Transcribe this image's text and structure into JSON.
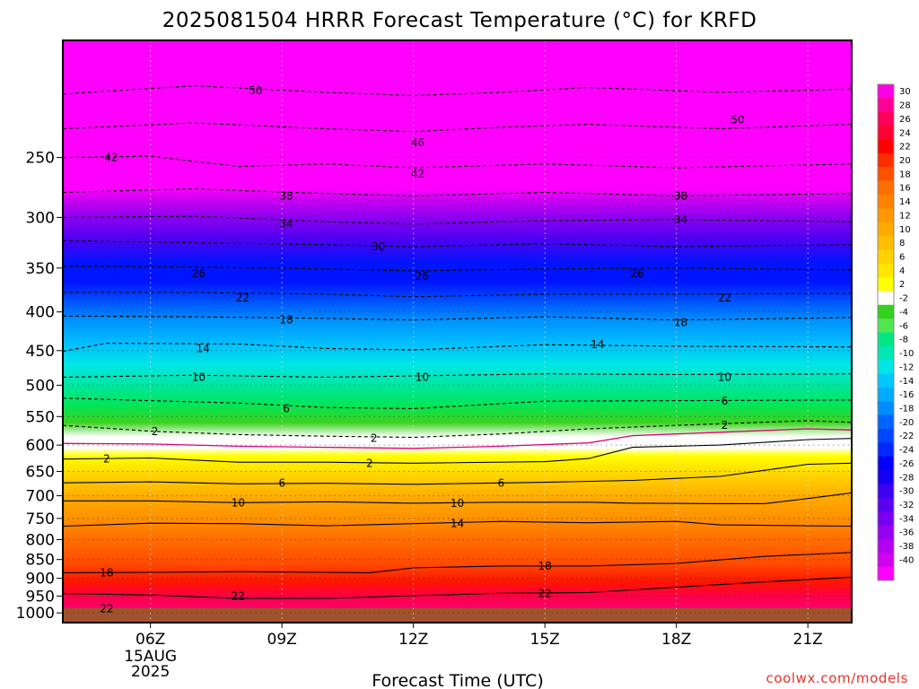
{
  "chart_data": {
    "type": "heatmap",
    "subtype": "filled-contour time-height cross section",
    "title": "2025081504 HRRR Forecast Temperature (°C) for KRFD",
    "xlabel": "Forecast Time (UTC)",
    "ylabel": "",
    "x_ticks": [
      {
        "label": "06Z",
        "sub": [
          "15AUG",
          "2025"
        ]
      },
      {
        "label": "09Z"
      },
      {
        "label": "12Z"
      },
      {
        "label": "15Z"
      },
      {
        "label": "18Z"
      },
      {
        "label": "21Z"
      }
    ],
    "y_axis": {
      "quantity": "pressure (hPa)",
      "scale": "log",
      "reversed": true,
      "range": [
        1030,
        175
      ],
      "ticks": [
        250,
        300,
        350,
        400,
        450,
        500,
        550,
        600,
        650,
        700,
        750,
        800,
        850,
        900,
        950,
        1000
      ]
    },
    "x_range_hours": [
      4,
      22
    ],
    "grid": "dotted",
    "ground_below_hPa": 985,
    "ground_color": "#a0522d",
    "colorbar": {
      "label_values": [
        30,
        28,
        26,
        24,
        22,
        20,
        18,
        16,
        14,
        12,
        10,
        8,
        6,
        4,
        2,
        -2,
        -4,
        -6,
        -8,
        -10,
        -12,
        -14,
        -16,
        -18,
        -20,
        -22,
        -24,
        -26,
        -28,
        -30,
        -32,
        -34,
        -36,
        -38,
        -40
      ],
      "colors": [
        "#ff00e6",
        "#ff0096",
        "#ff005a",
        "#ff0032",
        "#ff0000",
        "#ff2d00",
        "#ff5000",
        "#ff6e00",
        "#ff8200",
        "#ff9600",
        "#ffaa00",
        "#ffbe00",
        "#ffd200",
        "#ffe600",
        "#ffff00",
        "#ffffff",
        "#32d21e",
        "#50e650",
        "#00e682",
        "#00e6b4",
        "#00e6e6",
        "#00c8ff",
        "#00aaff",
        "#008cff",
        "#0064ff",
        "#0046ff",
        "#0028ff",
        "#0000ff",
        "#1400f0",
        "#3c00f0",
        "#5a00f0",
        "#7800f0",
        "#9600f0",
        "#b400f0",
        "#d200f0",
        "#ff00ff"
      ]
    },
    "isotherms": [
      {
        "temp": -50,
        "points": [
          [
            4,
            206
          ],
          [
            7,
            201
          ],
          [
            10,
            205
          ],
          [
            12,
            207
          ],
          [
            14,
            205
          ],
          [
            16,
            202
          ],
          [
            19,
            205
          ],
          [
            22,
            203
          ]
        ]
      },
      {
        "temp": -46,
        "points": [
          [
            4,
            229
          ],
          [
            7,
            225
          ],
          [
            10,
            229
          ],
          [
            12,
            231
          ],
          [
            14,
            228
          ],
          [
            16,
            226
          ],
          [
            19,
            229
          ],
          [
            22,
            226
          ]
        ]
      },
      {
        "temp": -42,
        "points": [
          [
            4,
            250
          ],
          [
            6,
            249
          ],
          [
            8,
            257
          ],
          [
            10,
            255
          ],
          [
            12,
            258
          ],
          [
            15,
            255
          ],
          [
            18,
            258
          ],
          [
            22,
            255
          ]
        ]
      },
      {
        "temp": -38,
        "points": [
          [
            4,
            278
          ],
          [
            7,
            275
          ],
          [
            10,
            279
          ],
          [
            12,
            281
          ],
          [
            15,
            278
          ],
          [
            18,
            281
          ],
          [
            22,
            279
          ]
        ]
      },
      {
        "temp": -34,
        "points": [
          [
            4,
            300
          ],
          [
            7,
            299
          ],
          [
            10,
            304
          ],
          [
            12,
            306
          ],
          [
            15,
            303
          ],
          [
            18,
            302
          ],
          [
            22,
            304
          ]
        ]
      },
      {
        "temp": -30,
        "points": [
          [
            4,
            322
          ],
          [
            7,
            324
          ],
          [
            10,
            326
          ],
          [
            12,
            328
          ],
          [
            15,
            325
          ],
          [
            18,
            328
          ],
          [
            22,
            326
          ]
        ]
      },
      {
        "temp": -26,
        "points": [
          [
            4,
            348
          ],
          [
            7,
            349
          ],
          [
            10,
            351
          ],
          [
            12,
            353
          ],
          [
            15,
            351
          ],
          [
            18,
            350
          ],
          [
            22,
            352
          ]
        ]
      },
      {
        "temp": -22,
        "points": [
          [
            4,
            377
          ],
          [
            7,
            377
          ],
          [
            10,
            379
          ],
          [
            12,
            382
          ],
          [
            15,
            379
          ],
          [
            18,
            379
          ],
          [
            22,
            378
          ]
        ]
      },
      {
        "temp": -18,
        "points": [
          [
            4,
            405
          ],
          [
            7,
            406
          ],
          [
            10,
            408
          ],
          [
            12,
            410
          ],
          [
            15,
            406
          ],
          [
            18,
            410
          ],
          [
            22,
            407
          ]
        ]
      },
      {
        "temp": -14,
        "points": [
          [
            4,
            451
          ],
          [
            5,
            440
          ],
          [
            8,
            441
          ],
          [
            10,
            447
          ],
          [
            12,
            449
          ],
          [
            15,
            442
          ],
          [
            18,
            444
          ],
          [
            22,
            445
          ]
        ]
      },
      {
        "temp": -10,
        "points": [
          [
            4,
            488
          ],
          [
            7,
            485
          ],
          [
            10,
            488
          ],
          [
            12,
            486
          ],
          [
            15,
            483
          ],
          [
            18,
            484
          ],
          [
            22,
            483
          ]
        ]
      },
      {
        "temp": -6,
        "points": [
          [
            4,
            520
          ],
          [
            6,
            524
          ],
          [
            8,
            528
          ],
          [
            10,
            535
          ],
          [
            12,
            537
          ],
          [
            15,
            525
          ],
          [
            18,
            524
          ],
          [
            22,
            523
          ]
        ]
      },
      {
        "temp": -2,
        "points": [
          [
            4,
            565
          ],
          [
            6,
            575
          ],
          [
            8,
            581
          ],
          [
            10,
            584
          ],
          [
            12,
            586
          ],
          [
            14,
            580
          ],
          [
            16,
            571
          ],
          [
            18,
            565
          ],
          [
            21,
            557
          ],
          [
            22,
            560
          ]
        ]
      },
      {
        "temp": 2,
        "points": [
          [
            4,
            626
          ],
          [
            6,
            624
          ],
          [
            8,
            632
          ],
          [
            10,
            632
          ],
          [
            12,
            634
          ],
          [
            15,
            631
          ],
          [
            16,
            625
          ],
          [
            17,
            604
          ],
          [
            19,
            600
          ],
          [
            21,
            590
          ],
          [
            22,
            588
          ]
        ]
      },
      {
        "temp": 6,
        "points": [
          [
            4,
            673
          ],
          [
            6,
            671
          ],
          [
            8,
            675
          ],
          [
            10,
            674
          ],
          [
            12,
            676
          ],
          [
            15,
            672
          ],
          [
            17,
            668
          ],
          [
            19,
            660
          ],
          [
            20,
            648
          ],
          [
            21,
            636
          ],
          [
            22,
            634
          ]
        ]
      },
      {
        "temp": 10,
        "points": [
          [
            4,
            711
          ],
          [
            6,
            711
          ],
          [
            8,
            715
          ],
          [
            10,
            713
          ],
          [
            12,
            716
          ],
          [
            14,
            714
          ],
          [
            16,
            714
          ],
          [
            17,
            716
          ],
          [
            19,
            717
          ],
          [
            20,
            717
          ],
          [
            21,
            706
          ],
          [
            22,
            694
          ]
        ]
      },
      {
        "temp": 14,
        "points": [
          [
            4,
            768
          ],
          [
            6,
            761
          ],
          [
            8,
            762
          ],
          [
            10,
            767
          ],
          [
            12,
            762
          ],
          [
            14,
            757
          ],
          [
            16,
            760
          ],
          [
            18,
            757
          ],
          [
            19,
            765
          ],
          [
            22,
            768
          ]
        ]
      },
      {
        "temp": 18,
        "points": [
          [
            4,
            885
          ],
          [
            6,
            884
          ],
          [
            8,
            882
          ],
          [
            10,
            884
          ],
          [
            11,
            885
          ],
          [
            12,
            872
          ],
          [
            14,
            867
          ],
          [
            16,
            867
          ],
          [
            18,
            860
          ],
          [
            20,
            842
          ],
          [
            22,
            832
          ]
        ]
      },
      {
        "temp": 22,
        "points": [
          [
            4,
            943
          ],
          [
            6,
            947
          ],
          [
            8,
            957
          ],
          [
            10,
            957
          ],
          [
            12,
            949
          ],
          [
            14,
            942
          ],
          [
            16,
            940
          ],
          [
            18,
            925
          ],
          [
            20,
            910
          ],
          [
            22,
            897
          ]
        ]
      }
    ],
    "isotherm_labels": [
      {
        "text": "50",
        "x": 8.4,
        "p": 204
      },
      {
        "text": "50",
        "x": 19.4,
        "p": 223
      },
      {
        "text": "46",
        "x": 12.1,
        "p": 239
      },
      {
        "text": "42",
        "x": 5.1,
        "p": 250
      },
      {
        "text": "42",
        "x": 12.1,
        "p": 263
      },
      {
        "text": "38",
        "x": 9.1,
        "p": 281
      },
      {
        "text": "38",
        "x": 18.1,
        "p": 281
      },
      {
        "text": "34",
        "x": 9.1,
        "p": 306
      },
      {
        "text": "34",
        "x": 18.1,
        "p": 302
      },
      {
        "text": "30",
        "x": 11.2,
        "p": 328
      },
      {
        "text": "26",
        "x": 7.1,
        "p": 356
      },
      {
        "text": "26",
        "x": 12.2,
        "p": 359
      },
      {
        "text": "26",
        "x": 17.1,
        "p": 356
      },
      {
        "text": "22",
        "x": 8.1,
        "p": 383
      },
      {
        "text": "22",
        "x": 19.1,
        "p": 383
      },
      {
        "text": "18",
        "x": 9.1,
        "p": 410
      },
      {
        "text": "18",
        "x": 18.1,
        "p": 413
      },
      {
        "text": "14",
        "x": 7.2,
        "p": 447
      },
      {
        "text": "14",
        "x": 16.2,
        "p": 442
      },
      {
        "text": "10",
        "x": 7.1,
        "p": 488
      },
      {
        "text": "10",
        "x": 12.2,
        "p": 488
      },
      {
        "text": "10",
        "x": 19.1,
        "p": 488
      },
      {
        "text": "6",
        "x": 9.1,
        "p": 537
      },
      {
        "text": "6",
        "x": 19.1,
        "p": 525
      },
      {
        "text": "2",
        "x": 6.1,
        "p": 576
      },
      {
        "text": "2",
        "x": 11.1,
        "p": 588
      },
      {
        "text": "2",
        "x": 19.1,
        "p": 565
      },
      {
        "text": "2",
        "x": 5.0,
        "p": 626
      },
      {
        "text": "2",
        "x": 11.0,
        "p": 634
      },
      {
        "text": "6",
        "x": 9.0,
        "p": 674
      },
      {
        "text": "6",
        "x": 14.0,
        "p": 674
      },
      {
        "text": "10",
        "x": 8.0,
        "p": 715
      },
      {
        "text": "10",
        "x": 13.0,
        "p": 716
      },
      {
        "text": "14",
        "x": 13.0,
        "p": 762
      },
      {
        "text": "18",
        "x": 5.0,
        "p": 885
      },
      {
        "text": "18",
        "x": 15.0,
        "p": 867
      },
      {
        "text": "22",
        "x": 8.0,
        "p": 950
      },
      {
        "text": "22",
        "x": 15.0,
        "p": 942
      },
      {
        "text": "22",
        "x": 5.0,
        "p": 987
      }
    ]
  },
  "footer": {
    "credit": "coolwx.com/models"
  }
}
